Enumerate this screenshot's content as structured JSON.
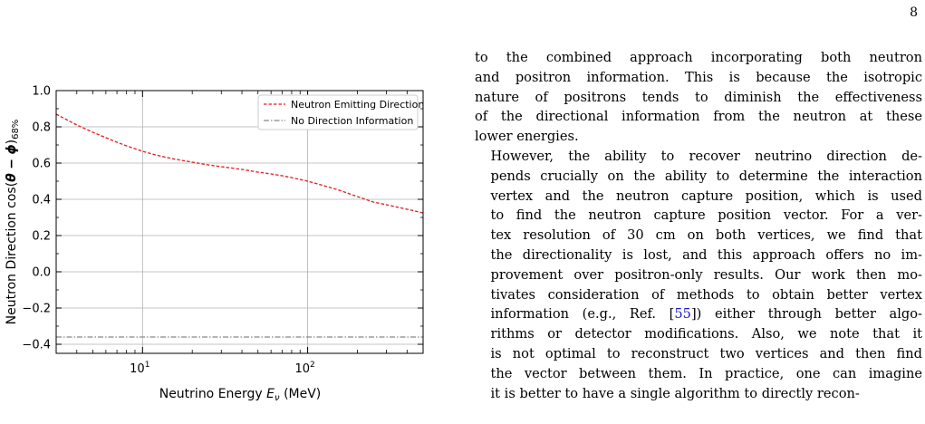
{
  "page": {
    "number": "8"
  },
  "figure": {
    "chart_data": {
      "type": "line",
      "xscale": "log",
      "xlim": [
        3,
        500
      ],
      "ylim": [
        -0.45,
        1.0
      ],
      "xlabel": "Neutrino Energy E_ν (MeV)",
      "ylabel": "Neutron Direction cos(θ − ϕ)68%",
      "x_ticks": [
        10,
        100
      ],
      "x_tick_labels": [
        "10^1",
        "10^2"
      ],
      "y_ticks": [
        -0.4,
        -0.2,
        0.0,
        0.2,
        0.4,
        0.6,
        0.8,
        1.0
      ],
      "y_tick_labels": [
        "−0.4",
        "−0.2",
        "0.0",
        "0.2",
        "0.4",
        "0.6",
        "0.8",
        "1.0"
      ],
      "grid": true,
      "legend_position": "top-right",
      "series": [
        {
          "name": "Neutron Emitting Direction",
          "color": "#e31a1c",
          "style": "dashed",
          "x": [
            3,
            4,
            5,
            6,
            7,
            8,
            10,
            12,
            15,
            20,
            25,
            30,
            40,
            50,
            60,
            70,
            80,
            100,
            120,
            150,
            200,
            250,
            300,
            400,
            500
          ],
          "y": [
            0.87,
            0.81,
            0.77,
            0.74,
            0.715,
            0.695,
            0.665,
            0.645,
            0.625,
            0.605,
            0.59,
            0.58,
            0.565,
            0.55,
            0.54,
            0.53,
            0.52,
            0.5,
            0.48,
            0.455,
            0.415,
            0.385,
            0.37,
            0.345,
            0.325
          ]
        },
        {
          "name": "No Direction Information",
          "color": "#888888",
          "style": "dashdot",
          "x": [
            3,
            500
          ],
          "y": [
            -0.36,
            -0.36
          ]
        }
      ]
    }
  },
  "text": {
    "para1_lines": [
      "to the combined approach incorporating both neutron",
      "and positron information. This is because the isotropic",
      "nature of positrons tends to diminish the effectiveness",
      "of the directional information from the neutron at these",
      "lower energies."
    ],
    "para2_lines": [
      "However, the ability to recover neutrino direction de-",
      "pends crucially on the ability to determine the interaction",
      "vertex and the neutron capture position, which is used",
      "to find the neutron capture position vector. For a ver-",
      "tex resolution of 30 cm on both vertices, we find that",
      "the directionality is lost, and this approach offers no im-",
      "provement over positron-only results. Our work then mo-",
      "tivates consideration of methods to obtain better vertex",
      "information (e.g., Ref. [55]) either through better algo-",
      "rithms or detector modifications. Also, we note that it",
      "is not optimal to reconstruct two vertices and then find",
      "the vector between them. In practice, one can imagine",
      "it is better to have a single algorithm to directly recon-"
    ]
  }
}
